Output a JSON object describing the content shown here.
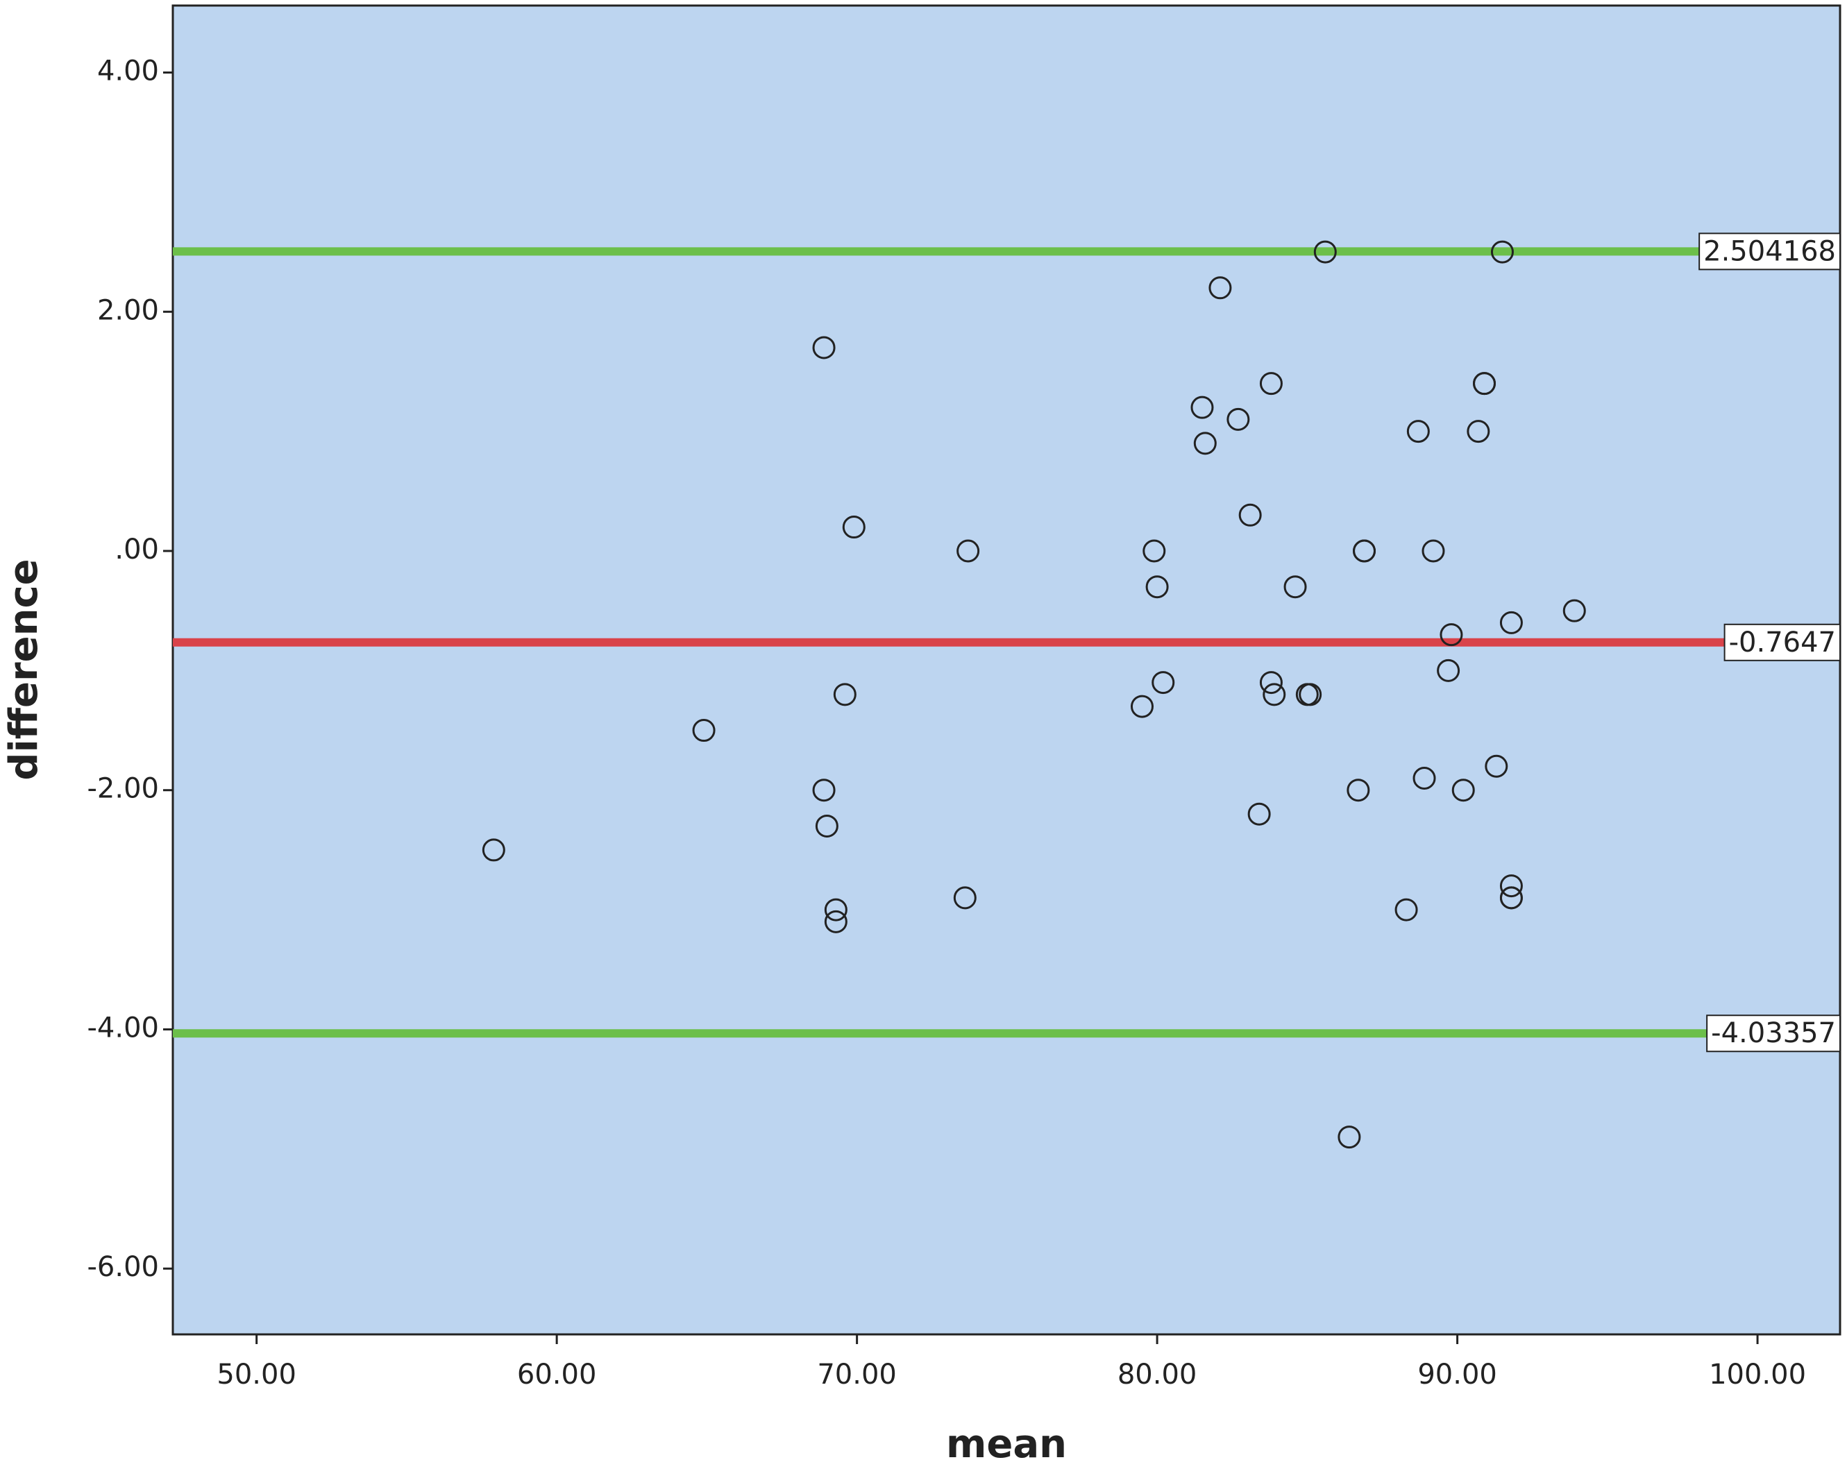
{
  "chart_data": {
    "type": "scatter",
    "x_label": "mean",
    "y_label": "difference",
    "x": [
      57.9,
      64.9,
      68.9,
      69.9,
      68.9,
      69.0,
      69.6,
      69.3,
      69.3,
      73.7,
      73.6,
      79.9,
      80.0,
      79.5,
      80.2,
      82.1,
      81.5,
      81.6,
      82.7,
      83.8,
      83.1,
      83.4,
      83.8,
      83.9,
      84.6,
      85.0,
      85.1,
      85.6,
      86.9,
      86.9,
      86.7,
      86.4,
      88.3,
      88.7,
      88.9,
      89.2,
      89.7,
      89.8,
      90.2,
      90.7,
      90.9,
      90.9,
      91.5,
      91.3,
      91.8,
      91.8,
      91.8,
      91.8,
      93.9
    ],
    "series": [
      {
        "color": "#222222",
        "values": [
          -2.5,
          -1.5,
          1.7,
          0.2,
          -2.0,
          -2.3,
          -1.2,
          -3.0,
          -3.1,
          0.0,
          -2.9,
          0.0,
          -0.3,
          -1.3,
          -1.1,
          2.2,
          1.2,
          0.9,
          1.1,
          1.4,
          0.3,
          -2.2,
          -1.1,
          -1.2,
          -0.3,
          -1.2,
          -1.2,
          2.5,
          0.0,
          0.0,
          -2.0,
          -4.9,
          -3.0,
          1.0,
          -1.9,
          0.0,
          -1.0,
          -0.7,
          -2.0,
          1.0,
          1.4,
          1.4,
          2.5,
          -1.8,
          -0.6,
          -2.8,
          -2.9,
          -2.9,
          -0.5
        ]
      }
    ],
    "reference_lines": [
      {
        "value": 2.504168,
        "color": "#6cbf4a"
      },
      {
        "value": -0.7647,
        "color": "#d9434a"
      },
      {
        "value": -4.03357,
        "color": "#6cbf4a"
      }
    ],
    "xlim": [
      47.21,
      102.75
    ],
    "ylim": [
      -6.55,
      4.56
    ],
    "xticks": [
      {
        "value": 50,
        "label": "50.00"
      },
      {
        "value": 60,
        "label": "60.00"
      },
      {
        "value": 70,
        "label": "70.00"
      },
      {
        "value": 80,
        "label": "80.00"
      },
      {
        "value": 90,
        "label": "90.00"
      },
      {
        "value": 100,
        "label": "100.00"
      }
    ],
    "yticks": [
      {
        "value": -6,
        "label": "-6.00"
      },
      {
        "value": -4,
        "label": "-4.00"
      },
      {
        "value": -2,
        "label": "-2.00"
      },
      {
        "value": 0,
        "label": ".00"
      },
      {
        "value": 2,
        "label": "2.00"
      },
      {
        "value": 4,
        "label": "4.00"
      }
    ],
    "background": "#bdd5f0"
  }
}
